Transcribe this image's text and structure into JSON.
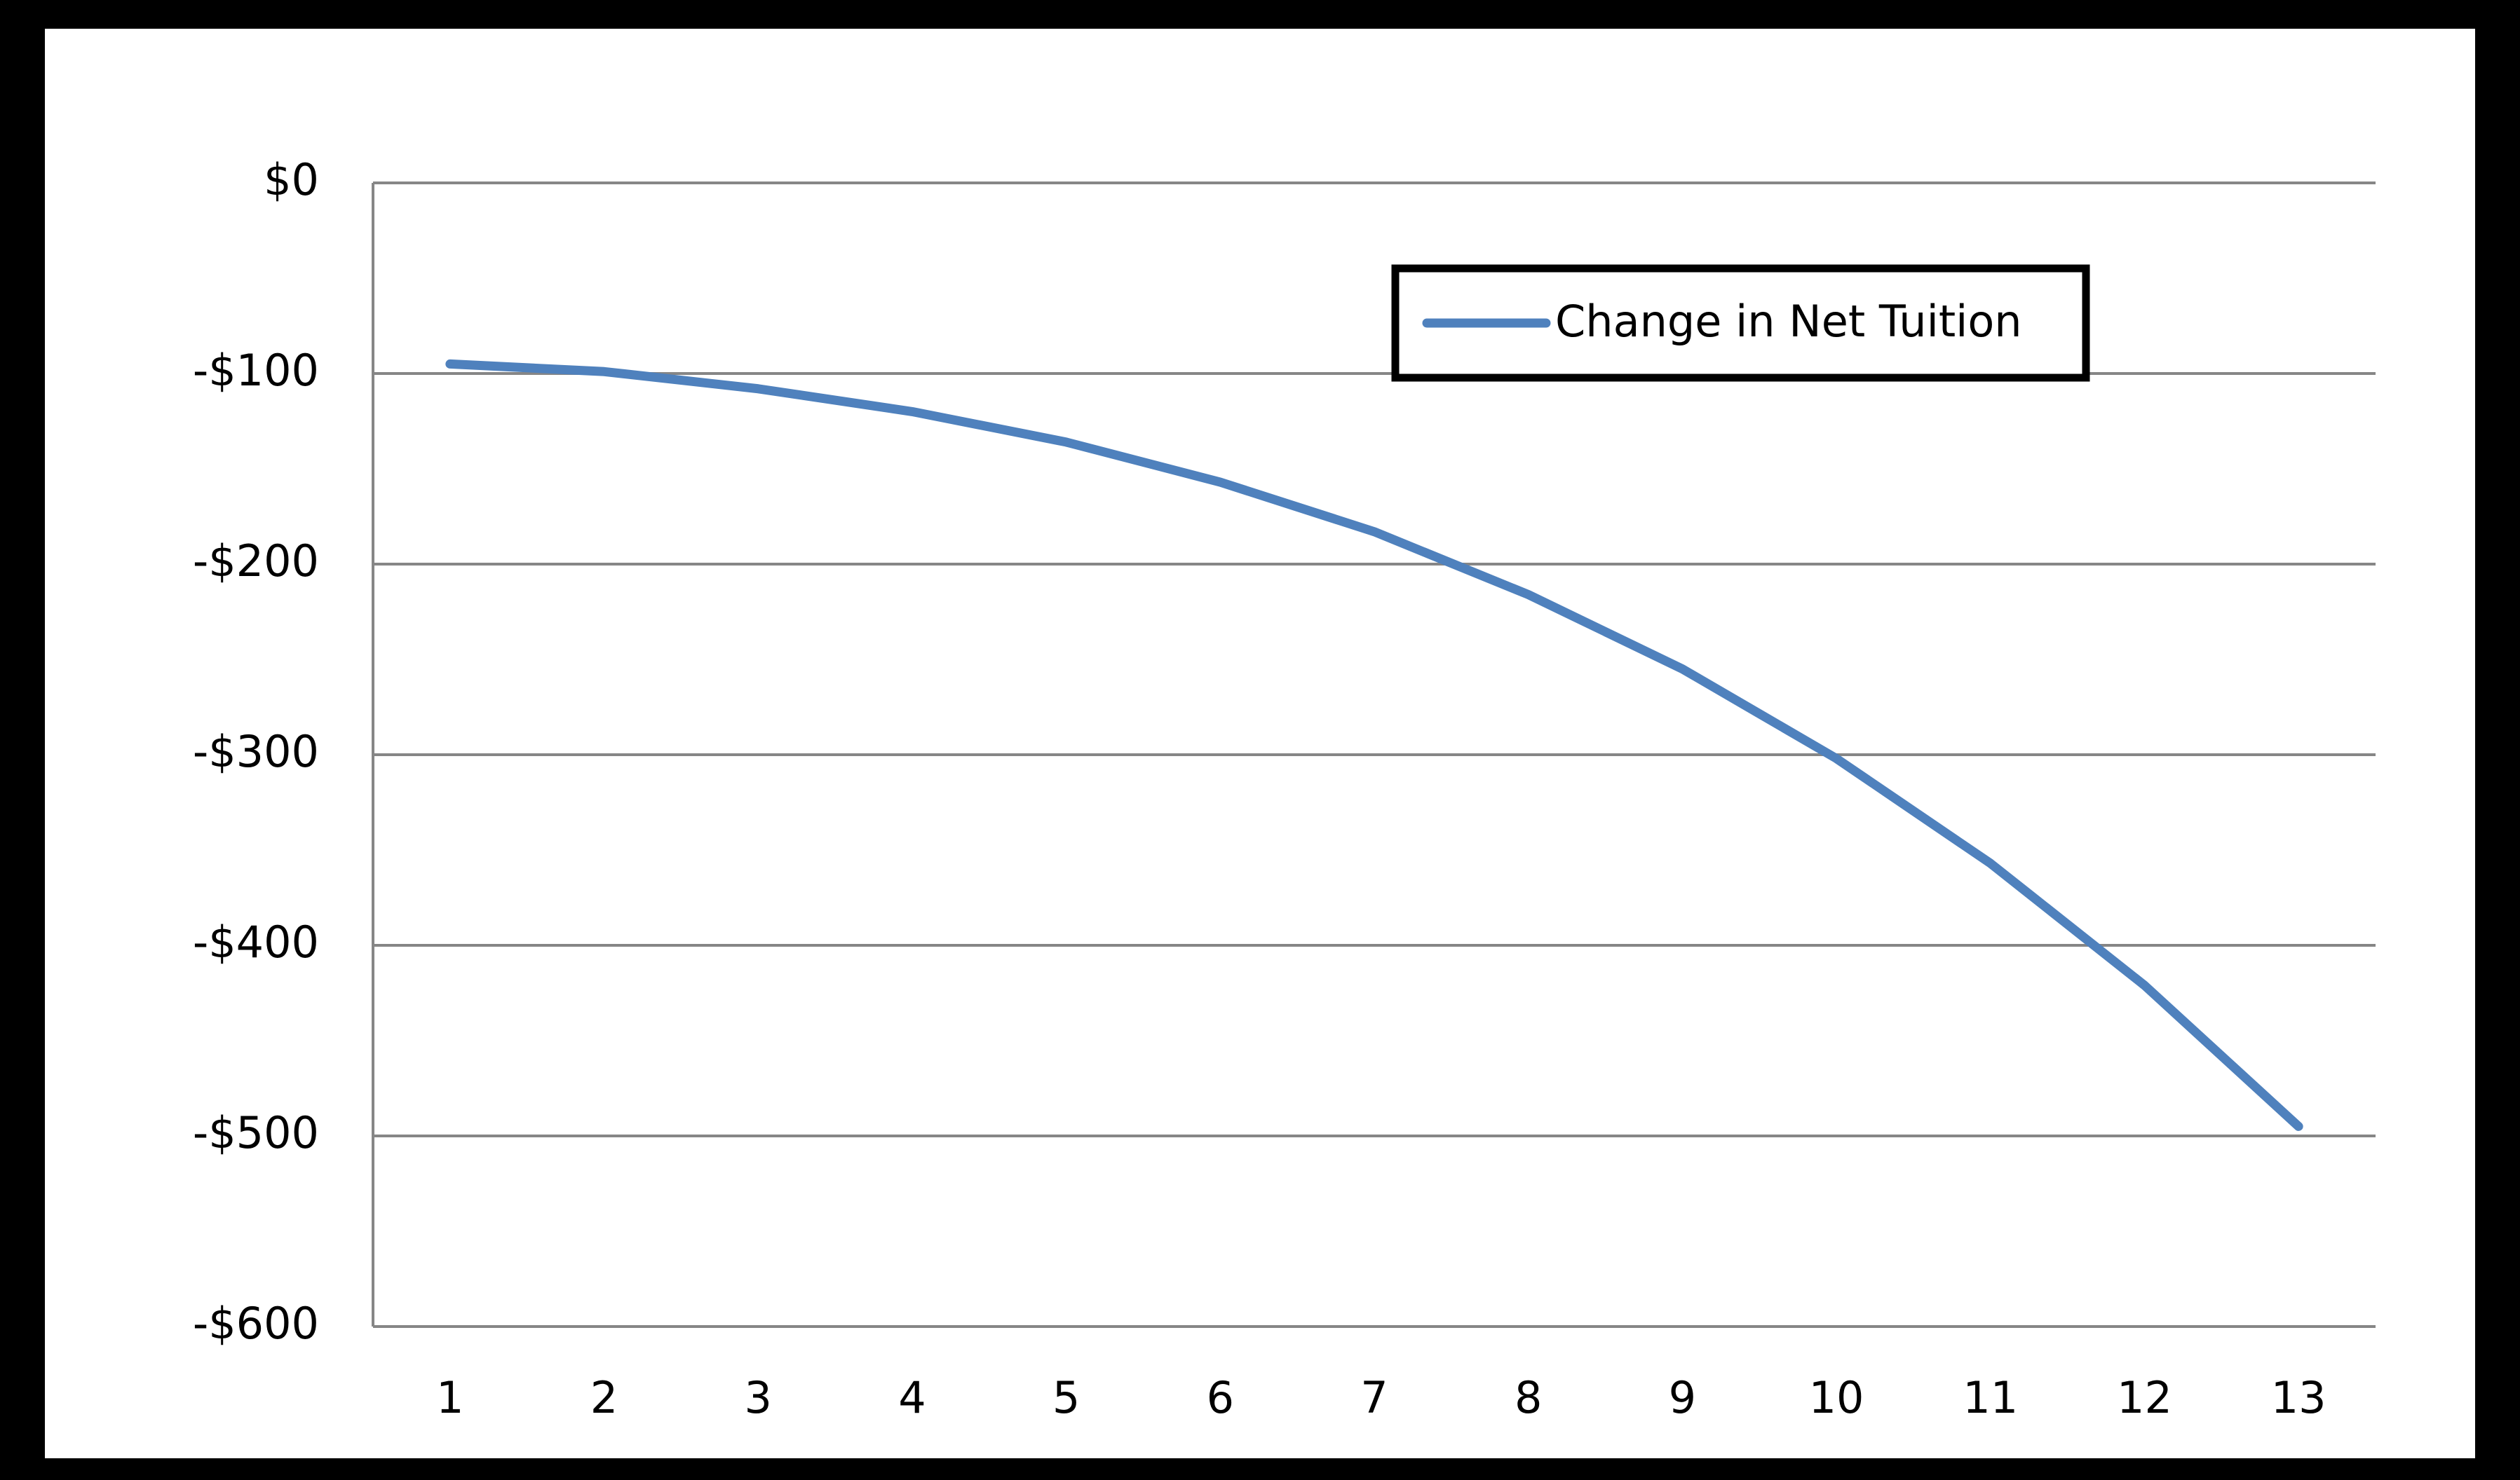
{
  "chart_data": {
    "type": "line",
    "categories": [
      "1",
      "2",
      "3",
      "4",
      "5",
      "6",
      "7",
      "8",
      "9",
      "10",
      "11",
      "12",
      "13"
    ],
    "series": [
      {
        "name": "Change in Net Tuition",
        "color": "#4f81bd",
        "values": [
          -95,
          -99,
          -108,
          -120,
          -136,
          -157,
          -183,
          -216,
          -255,
          -302,
          -357,
          -421,
          -495
        ]
      }
    ],
    "ylim": [
      -600,
      0
    ],
    "yticks": [
      {
        "value": -600,
        "label": "-$600"
      },
      {
        "value": -500,
        "label": "-$500"
      },
      {
        "value": -400,
        "label": "-$400"
      },
      {
        "value": -300,
        "label": "-$300"
      },
      {
        "value": -200,
        "label": "-$200"
      },
      {
        "value": -100,
        "label": "-$100"
      },
      {
        "value": 0,
        "label": "$0"
      }
    ],
    "grid": true,
    "legend": "top-right"
  }
}
